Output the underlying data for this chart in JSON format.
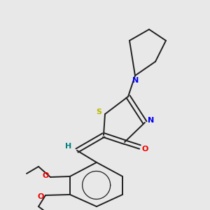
{
  "background_color": "#e8e8e8",
  "bond_color": "#202020",
  "figsize": [
    3.0,
    3.0
  ],
  "dpi": 100,
  "lw": 1.4,
  "atoms": {
    "S": {
      "color": "#b8b800"
    },
    "N": {
      "color": "#0000ee"
    },
    "O": {
      "color": "#ee0000"
    },
    "H": {
      "color": "#008080"
    }
  }
}
